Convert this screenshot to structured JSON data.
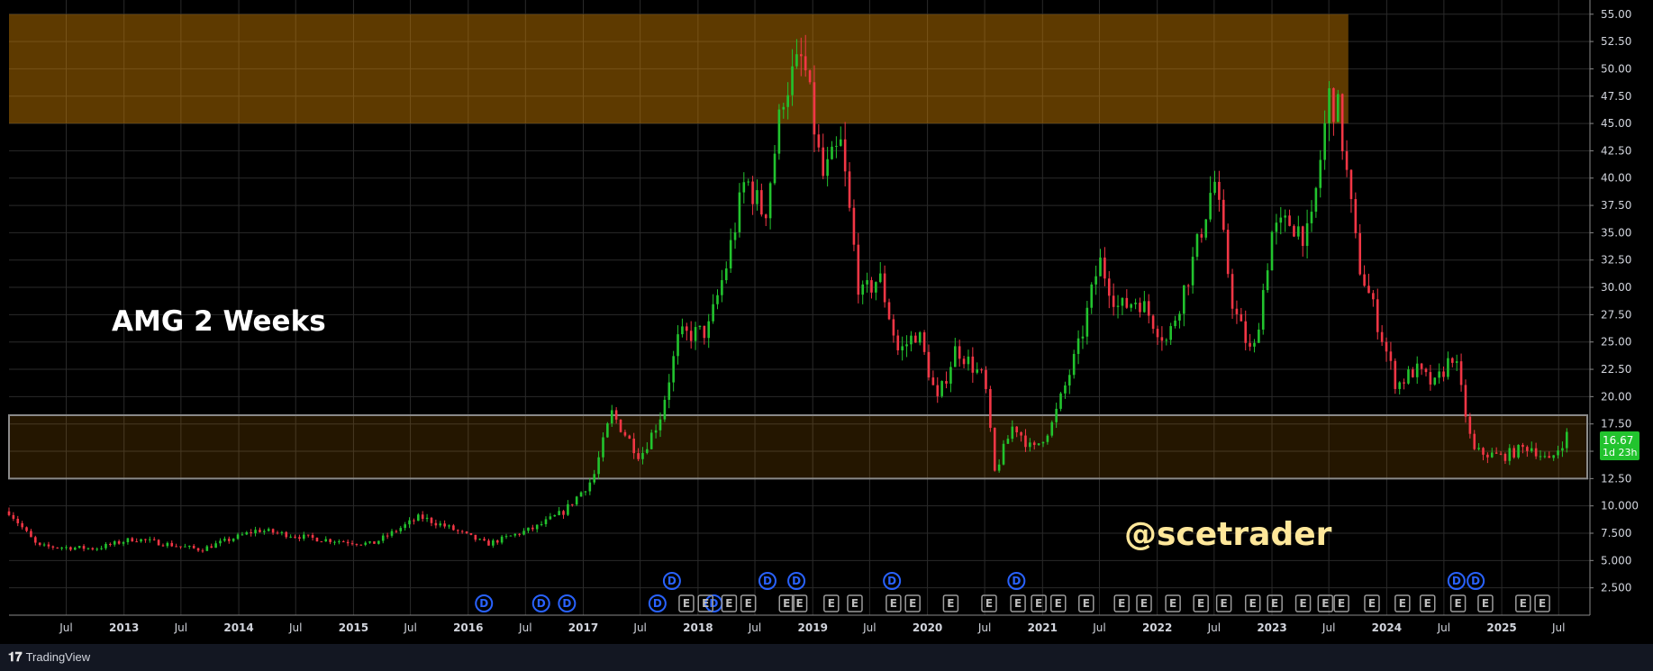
{
  "app": {
    "brand": "TradingView"
  },
  "annotations": {
    "title": "AMG 2 Weeks",
    "handle": "@scetrader"
  },
  "price_marker": {
    "price": "16.67",
    "countdown": "1d 23h",
    "color": "#22c32e"
  },
  "colors": {
    "up": "#22c32e",
    "down": "#f23645",
    "zone": "#e08a00",
    "background": "#000000",
    "grid": "#2a2a2a"
  },
  "chart_data": {
    "type": "candlestick",
    "title": "AMG 2 Weeks",
    "interval": "2W",
    "y_ticks": [
      "55.00",
      "52.50",
      "50.00",
      "47.50",
      "45.00",
      "42.50",
      "40.00",
      "37.50",
      "35.00",
      "32.50",
      "30.00",
      "27.50",
      "25.00",
      "22.50",
      "20.00",
      "17.50",
      "15.00",
      "12.50",
      "10.000",
      "7.500",
      "5.000",
      "2.500"
    ],
    "y_range": [
      0,
      56.3
    ],
    "x_range": [
      "2012-01-01",
      "2025-09-30"
    ],
    "x_ticks": [
      {
        "date": "2012-07-01",
        "label": "Jul"
      },
      {
        "date": "2013-01-01",
        "label": "2013"
      },
      {
        "date": "2013-07-01",
        "label": "Jul"
      },
      {
        "date": "2014-01-01",
        "label": "2014"
      },
      {
        "date": "2014-07-01",
        "label": "Jul"
      },
      {
        "date": "2015-01-01",
        "label": "2015"
      },
      {
        "date": "2015-07-01",
        "label": "Jul"
      },
      {
        "date": "2016-01-01",
        "label": "2016"
      },
      {
        "date": "2016-07-01",
        "label": "Jul"
      },
      {
        "date": "2017-01-01",
        "label": "2017"
      },
      {
        "date": "2017-07-01",
        "label": "Jul"
      },
      {
        "date": "2018-01-01",
        "label": "2018"
      },
      {
        "date": "2018-07-01",
        "label": "Jul"
      },
      {
        "date": "2019-01-01",
        "label": "2019"
      },
      {
        "date": "2019-07-01",
        "label": "Jul"
      },
      {
        "date": "2020-01-01",
        "label": "2020"
      },
      {
        "date": "2020-07-01",
        "label": "Jul"
      },
      {
        "date": "2021-01-01",
        "label": "2021"
      },
      {
        "date": "2021-07-01",
        "label": "Jul"
      },
      {
        "date": "2022-01-01",
        "label": "2022"
      },
      {
        "date": "2022-07-01",
        "label": "Jul"
      },
      {
        "date": "2023-01-01",
        "label": "2023"
      },
      {
        "date": "2023-07-01",
        "label": "Jul"
      },
      {
        "date": "2024-01-01",
        "label": "2024"
      },
      {
        "date": "2024-07-01",
        "label": "Jul"
      },
      {
        "date": "2025-01-01",
        "label": "2025"
      },
      {
        "date": "2025-07-01",
        "label": "Jul"
      }
    ],
    "zones": [
      {
        "name": "resistance",
        "from_date": "2012-01-01",
        "to_date": "2023-09-01",
        "low": 45.0,
        "high": 55.0
      },
      {
        "name": "support",
        "from_date": "2012-01-01",
        "to_date": "2025-09-30",
        "low": 12.5,
        "high": 18.3
      }
    ],
    "close_series": [
      {
        "date": "2012-01-01",
        "value": 9.5
      },
      {
        "date": "2012-04-01",
        "value": 6.3
      },
      {
        "date": "2012-10-01",
        "value": 6.1
      },
      {
        "date": "2013-02-01",
        "value": 7.0
      },
      {
        "date": "2013-09-01",
        "value": 6.0
      },
      {
        "date": "2014-03-01",
        "value": 7.8
      },
      {
        "date": "2014-09-01",
        "value": 7.0
      },
      {
        "date": "2015-03-01",
        "value": 6.5
      },
      {
        "date": "2015-08-01",
        "value": 9.0
      },
      {
        "date": "2015-11-01",
        "value": 8.0
      },
      {
        "date": "2016-03-01",
        "value": 6.5
      },
      {
        "date": "2016-08-01",
        "value": 8.0
      },
      {
        "date": "2016-11-01",
        "value": 9.5
      },
      {
        "date": "2017-02-01",
        "value": 12.5
      },
      {
        "date": "2017-04-01",
        "value": 18.5
      },
      {
        "date": "2017-07-01",
        "value": 14.5
      },
      {
        "date": "2017-09-01",
        "value": 18.0
      },
      {
        "date": "2017-11-01",
        "value": 25.5
      },
      {
        "date": "2018-02-01",
        "value": 26.0
      },
      {
        "date": "2018-04-01",
        "value": 32.0
      },
      {
        "date": "2018-06-01",
        "value": 40.0
      },
      {
        "date": "2018-08-01",
        "value": 36.5
      },
      {
        "date": "2018-10-01",
        "value": 48.0
      },
      {
        "date": "2018-12-01",
        "value": 51.0
      },
      {
        "date": "2019-02-01",
        "value": 40.0
      },
      {
        "date": "2019-04-01",
        "value": 43.0
      },
      {
        "date": "2019-06-01",
        "value": 29.0
      },
      {
        "date": "2019-08-01",
        "value": 31.0
      },
      {
        "date": "2019-10-01",
        "value": 24.0
      },
      {
        "date": "2019-12-01",
        "value": 26.0
      },
      {
        "date": "2020-02-01",
        "value": 19.5
      },
      {
        "date": "2020-04-01",
        "value": 24.5
      },
      {
        "date": "2020-07-01",
        "value": 21.5
      },
      {
        "date": "2020-08-01",
        "value": 13.0
      },
      {
        "date": "2020-10-01",
        "value": 17.5
      },
      {
        "date": "2020-12-01",
        "value": 15.0
      },
      {
        "date": "2021-02-01",
        "value": 17.5
      },
      {
        "date": "2021-05-01",
        "value": 25.0
      },
      {
        "date": "2021-07-01",
        "value": 32.5
      },
      {
        "date": "2021-09-01",
        "value": 28.0
      },
      {
        "date": "2021-11-01",
        "value": 29.0
      },
      {
        "date": "2022-02-01",
        "value": 25.0
      },
      {
        "date": "2022-05-01",
        "value": 33.0
      },
      {
        "date": "2022-07-01",
        "value": 40.0
      },
      {
        "date": "2022-09-01",
        "value": 28.0
      },
      {
        "date": "2022-11-01",
        "value": 23.5
      },
      {
        "date": "2023-01-01",
        "value": 35.0
      },
      {
        "date": "2023-03-01",
        "value": 36.0
      },
      {
        "date": "2023-05-01",
        "value": 34.5
      },
      {
        "date": "2023-07-01",
        "value": 47.5
      },
      {
        "date": "2023-08-01",
        "value": 46.0
      },
      {
        "date": "2023-10-01",
        "value": 32.5
      },
      {
        "date": "2023-12-01",
        "value": 27.0
      },
      {
        "date": "2024-02-01",
        "value": 21.0
      },
      {
        "date": "2024-04-01",
        "value": 22.5
      },
      {
        "date": "2024-06-01",
        "value": 21.0
      },
      {
        "date": "2024-08-01",
        "value": 24.0
      },
      {
        "date": "2024-10-01",
        "value": 15.0
      },
      {
        "date": "2025-01-01",
        "value": 14.5
      },
      {
        "date": "2025-04-01",
        "value": 15.5
      },
      {
        "date": "2025-06-01",
        "value": 14.0
      },
      {
        "date": "2025-08-01",
        "value": 16.67
      }
    ],
    "event_markers": [
      {
        "date": "2016-02-20",
        "letter": "D",
        "row": 1
      },
      {
        "date": "2016-08-20",
        "letter": "D",
        "row": 1
      },
      {
        "date": "2016-11-10",
        "letter": "D",
        "row": 1
      },
      {
        "date": "2018-02-20",
        "letter": "D",
        "row": 1
      },
      {
        "date": "2018-04-10",
        "letter": "E",
        "row": 1
      },
      {
        "date": "2018-06-10",
        "letter": "E",
        "row": 1
      },
      {
        "date": "2018-10-10",
        "letter": "E",
        "row": 1
      },
      {
        "date": "2018-11-20",
        "letter": "E",
        "row": 1
      },
      {
        "date": "2019-03-01",
        "letter": "E",
        "row": 1
      },
      {
        "date": "2019-05-15",
        "letter": "E",
        "row": 1
      },
      {
        "date": "2019-09-15",
        "letter": "E",
        "row": 1
      },
      {
        "date": "2019-11-15",
        "letter": "E",
        "row": 1
      },
      {
        "date": "2020-03-15",
        "letter": "E",
        "row": 1
      },
      {
        "date": "2020-07-15",
        "letter": "E",
        "row": 1
      },
      {
        "date": "2020-10-15",
        "letter": "E",
        "row": 1
      },
      {
        "date": "2020-12-20",
        "letter": "E",
        "row": 1
      },
      {
        "date": "2021-02-20",
        "letter": "E",
        "row": 1
      },
      {
        "date": "2021-05-20",
        "letter": "E",
        "row": 1
      },
      {
        "date": "2021-09-10",
        "letter": "E",
        "row": 1
      },
      {
        "date": "2021-11-20",
        "letter": "E",
        "row": 1
      },
      {
        "date": "2022-02-20",
        "letter": "E",
        "row": 1
      },
      {
        "date": "2022-05-20",
        "letter": "E",
        "row": 1
      },
      {
        "date": "2022-08-01",
        "letter": "E",
        "row": 1
      },
      {
        "date": "2022-11-01",
        "letter": "E",
        "row": 1
      },
      {
        "date": "2023-01-10",
        "letter": "E",
        "row": 1
      },
      {
        "date": "2023-04-10",
        "letter": "E",
        "row": 1
      },
      {
        "date": "2023-06-20",
        "letter": "E",
        "row": 1
      },
      {
        "date": "2023-08-10",
        "letter": "E",
        "row": 1
      },
      {
        "date": "2023-11-15",
        "letter": "E",
        "row": 1
      },
      {
        "date": "2024-02-20",
        "letter": "E",
        "row": 1
      },
      {
        "date": "2024-05-10",
        "letter": "E",
        "row": 1
      },
      {
        "date": "2024-08-15",
        "letter": "E",
        "row": 1
      },
      {
        "date": "2024-11-10",
        "letter": "E",
        "row": 1
      },
      {
        "date": "2025-03-10",
        "letter": "E",
        "row": 1
      },
      {
        "date": "2025-05-10",
        "letter": "E",
        "row": 1
      },
      {
        "date": "2017-10-10",
        "letter": "D",
        "row": 0
      },
      {
        "date": "2018-08-10",
        "letter": "D",
        "row": 0
      },
      {
        "date": "2018-11-10",
        "letter": "D",
        "row": 0
      },
      {
        "date": "2019-09-10",
        "letter": "D",
        "row": 0
      },
      {
        "date": "2020-10-10",
        "letter": "D",
        "row": 0
      },
      {
        "date": "2024-08-10",
        "letter": "D",
        "row": 0
      },
      {
        "date": "2024-10-10",
        "letter": "D",
        "row": 0
      },
      {
        "date": "2017-08-25",
        "letter": "D",
        "row": 1
      },
      {
        "date": "2017-11-25",
        "letter": "E",
        "row": 1
      },
      {
        "date": "2018-01-25",
        "letter": "E",
        "row": 1
      }
    ]
  }
}
